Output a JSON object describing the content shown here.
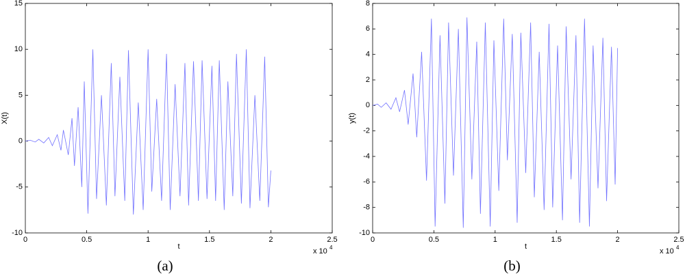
{
  "chart_data": [
    {
      "type": "line",
      "caption": "(a)",
      "x_label": "t",
      "y_label": "X(t)",
      "x_scale_label": "x 10",
      "x_scale_exponent": "4",
      "xlim": [
        0,
        2.5
      ],
      "xticks": [
        0,
        0.5,
        1,
        1.5,
        2,
        2.5
      ],
      "ylim": [
        -10,
        15
      ],
      "yticks": [
        -10,
        -5,
        0,
        5,
        10,
        15
      ],
      "color": "#7070ff",
      "x": [
        0,
        0.04,
        0.08,
        0.11,
        0.15,
        0.19,
        0.22,
        0.26,
        0.29,
        0.31,
        0.35,
        0.38,
        0.4,
        0.43,
        0.46,
        0.48,
        0.51,
        0.55,
        0.58,
        0.62,
        0.66,
        0.7,
        0.73,
        0.77,
        0.81,
        0.84,
        0.88,
        0.92,
        0.96,
        1.0,
        1.03,
        1.07,
        1.11,
        1.15,
        1.18,
        1.22,
        1.26,
        1.3,
        1.33,
        1.37,
        1.41,
        1.44,
        1.48,
        1.52,
        1.55,
        1.58,
        1.62,
        1.65,
        1.69,
        1.72,
        1.76,
        1.8,
        1.83,
        1.87,
        1.91,
        1.95,
        1.98,
        2.0
      ],
      "values": [
        0,
        0.1,
        -0.1,
        0.2,
        -0.2,
        0.4,
        -0.5,
        0.7,
        -1,
        1.2,
        -1.5,
        2.5,
        -2.7,
        3.7,
        -5,
        6.5,
        -7.9,
        10,
        -6.3,
        5,
        -7,
        8.5,
        -6,
        7,
        -6.5,
        9.9,
        -8,
        4.2,
        -7.5,
        10,
        -5.5,
        4.6,
        -6.5,
        9.5,
        -7.5,
        6.2,
        -6,
        8.5,
        -7,
        8.7,
        -6.5,
        8.8,
        -6.3,
        8.2,
        -6.5,
        8.8,
        -7.5,
        6.5,
        -6,
        9.5,
        -6.8,
        10,
        -7.3,
        5,
        -6.5,
        9.2,
        -7.2,
        -3.2
      ]
    },
    {
      "type": "line",
      "caption": "(b)",
      "x_label": "t",
      "y_label": "y(t)",
      "x_scale_label": "x 10",
      "x_scale_exponent": "4",
      "xlim": [
        0,
        2.5
      ],
      "xticks": [
        0,
        0.5,
        1,
        1.5,
        2,
        2.5
      ],
      "ylim": [
        -10,
        8
      ],
      "yticks": [
        -10,
        -8,
        -6,
        -4,
        -2,
        0,
        2,
        4,
        6,
        8
      ],
      "color": "#7070ff",
      "x": [
        0,
        0.04,
        0.07,
        0.11,
        0.15,
        0.19,
        0.22,
        0.26,
        0.29,
        0.33,
        0.36,
        0.4,
        0.44,
        0.48,
        0.51,
        0.55,
        0.59,
        0.62,
        0.66,
        0.7,
        0.74,
        0.77,
        0.81,
        0.85,
        0.88,
        0.92,
        0.96,
        0.99,
        1.03,
        1.07,
        1.1,
        1.14,
        1.18,
        1.21,
        1.25,
        1.29,
        1.32,
        1.36,
        1.4,
        1.44,
        1.47,
        1.51,
        1.55,
        1.58,
        1.62,
        1.66,
        1.69,
        1.73,
        1.77,
        1.8,
        1.84,
        1.88,
        1.91,
        1.95,
        1.98,
        2.0
      ],
      "values": [
        0,
        0.1,
        -0.15,
        0.2,
        -0.3,
        0.6,
        -0.5,
        1.2,
        -1.5,
        2.5,
        -2.5,
        4.2,
        -5.9,
        6.8,
        -9.5,
        5.5,
        -7.7,
        6.5,
        -5.5,
        6,
        -9.6,
        6.9,
        -5.8,
        5,
        -8.5,
        6.5,
        -9.5,
        5.1,
        -6.7,
        6.8,
        -4.3,
        5.6,
        -9.2,
        5.7,
        -5.3,
        6.5,
        -7.2,
        4.2,
        -8.2,
        6.4,
        -8,
        4.7,
        -9,
        6.2,
        -5.8,
        5.5,
        -9.2,
        6.8,
        -9.5,
        4.7,
        -6.5,
        5.3,
        -7.5,
        4.6,
        -6.2,
        4.5
      ]
    }
  ]
}
